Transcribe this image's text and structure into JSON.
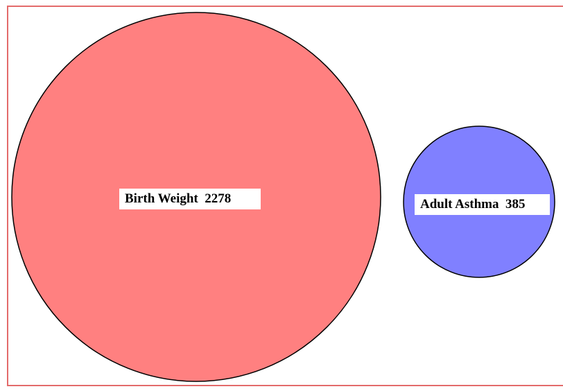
{
  "diagram": {
    "type": "proportional-circles",
    "frame_color": "#e36a6a",
    "sets": [
      {
        "name": "Birth Weight",
        "count": "2278",
        "label": "Birth Weight  2278",
        "fill": "#ff8080",
        "stroke": "#000000"
      },
      {
        "name": "Adult Asthma",
        "count": "385",
        "label": "Adult Asthma  385",
        "fill": "#8080ff",
        "stroke": "#000000"
      }
    ]
  }
}
